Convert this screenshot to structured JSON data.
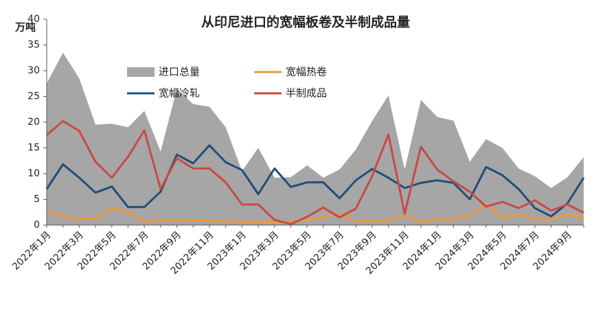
{
  "chart_data": {
    "type": "area_line",
    "title": "从印尼进口的宽幅板卷及半制成品量",
    "y_label": "万吨",
    "categories": [
      "2022年1月",
      null,
      "2022年3月",
      null,
      "2022年5月",
      null,
      "2022年7月",
      null,
      "2022年9月",
      null,
      "2022年11月",
      null,
      "2023年1月",
      null,
      "2023年3月",
      null,
      "2023年5月",
      null,
      "2023年7月",
      null,
      "2023年9月",
      null,
      "2023年11月",
      null,
      "2024年1月",
      null,
      "2024年3月",
      null,
      "2024年5月",
      null,
      "2024年7月",
      null,
      "2024年9月",
      null
    ],
    "series": [
      {
        "name": "进口总量",
        "kind": "area",
        "color": "#a6a6a6",
        "values": [
          27.5,
          33.5,
          28.5,
          19.5,
          19.7,
          19,
          22.2,
          14.3,
          26.5,
          23.5,
          23,
          19,
          10.5,
          15,
          9.2,
          9.3,
          11.6,
          9.2,
          10.8,
          14.7,
          20.2,
          25.2,
          10.8,
          24.3,
          21,
          20.3,
          12.3,
          16.7,
          15,
          11,
          9.5,
          7.2,
          9.3,
          13.2
        ]
      },
      {
        "name": "宽幅热卷",
        "kind": "line",
        "color": "#ed9a3a",
        "values": [
          2.8,
          1.6,
          1.2,
          1.2,
          3.2,
          2.6,
          0.6,
          1,
          1,
          1,
          0.8,
          0.8,
          0.6,
          0.6,
          0.6,
          0.6,
          1,
          1.6,
          2,
          0.8,
          0.8,
          0.8,
          2,
          0.6,
          1.2,
          1.2,
          1.8,
          4,
          1.4,
          2,
          1.2,
          1.2,
          2,
          1.4
        ]
      },
      {
        "name": "宽幅冷轧",
        "kind": "line",
        "color": "#1f4e79",
        "values": [
          7,
          11.8,
          9.2,
          6.3,
          7.5,
          3.5,
          3.5,
          6.5,
          13.7,
          12,
          15.5,
          12.2,
          10.7,
          6,
          11,
          7.4,
          8.3,
          8.3,
          5.2,
          8.7,
          10.9,
          9.2,
          7.2,
          8.2,
          8.7,
          8.2,
          5,
          11.3,
          9.7,
          7,
          3.3,
          1.7,
          4.2,
          9.2
        ]
      },
      {
        "name": "半制成品",
        "kind": "line",
        "color": "#c94a45",
        "values": [
          17.5,
          20.2,
          18.3,
          12.3,
          9.2,
          13.3,
          18.4,
          7,
          13,
          11,
          11,
          8.3,
          4,
          4,
          1,
          0.2,
          1.6,
          3.4,
          1.5,
          3.2,
          9.5,
          17.6,
          2.2,
          15.2,
          10.8,
          8.5,
          6.5,
          3.6,
          4.5,
          3.3,
          4.8,
          2.8,
          4,
          2.4
        ]
      }
    ],
    "ylim": [
      0,
      40
    ],
    "yticks": [
      0,
      5,
      10,
      15,
      20,
      25,
      30,
      35,
      40
    ],
    "grid": false
  }
}
